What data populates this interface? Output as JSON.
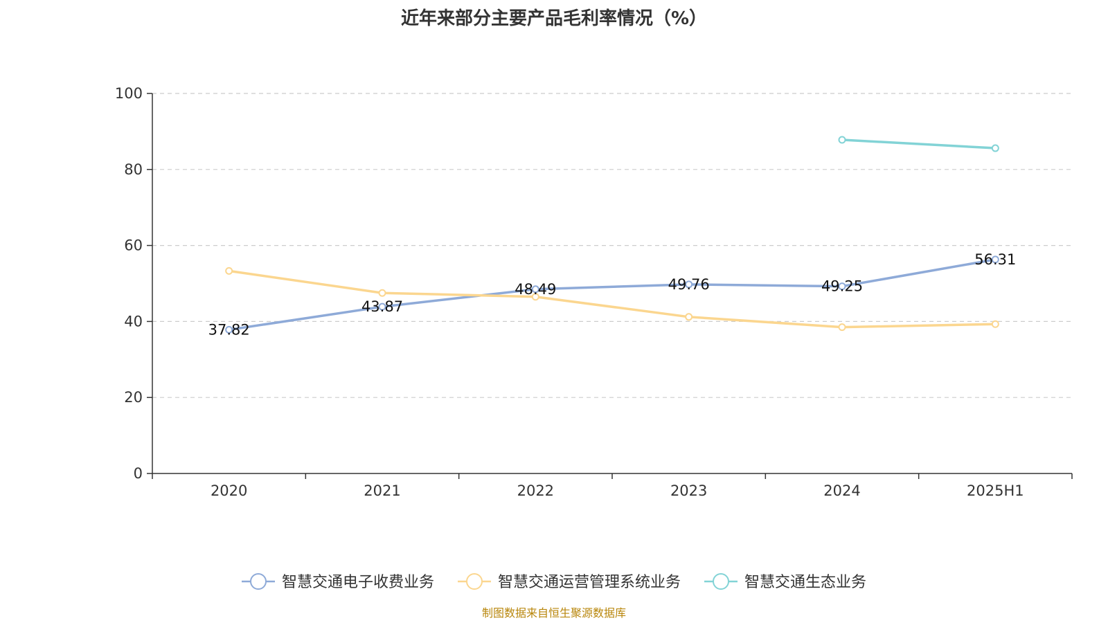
{
  "chart_data": {
    "type": "line",
    "title": "近年来部分主要产品毛利率情况（%）",
    "categories": [
      "2020",
      "2021",
      "2022",
      "2023",
      "2024",
      "2025H1"
    ],
    "ylim": [
      0,
      100
    ],
    "yticks": [
      "0",
      "20",
      "40",
      "60",
      "80",
      "100"
    ],
    "grid": true,
    "legend_position": "bottom",
    "series": [
      {
        "name": "智慧交通电子收费业务",
        "color": "#8eaad8",
        "values": [
          37.82,
          43.87,
          48.49,
          49.76,
          49.25,
          56.31
        ],
        "labels": [
          "37.82",
          "43.87",
          "48.49",
          "49.76",
          "49.25",
          "56.31"
        ]
      },
      {
        "name": "智慧交通运营管理系统业务",
        "color": "#fbd68f",
        "values": [
          53.3,
          47.5,
          46.5,
          41.2,
          38.5,
          39.3
        ],
        "labels": []
      },
      {
        "name": "智慧交通生态业务",
        "color": "#82d3d6",
        "values": [
          null,
          null,
          null,
          null,
          87.8,
          85.6
        ],
        "labels": []
      }
    ]
  },
  "source_note": "制图数据来自恒生聚源数据库"
}
